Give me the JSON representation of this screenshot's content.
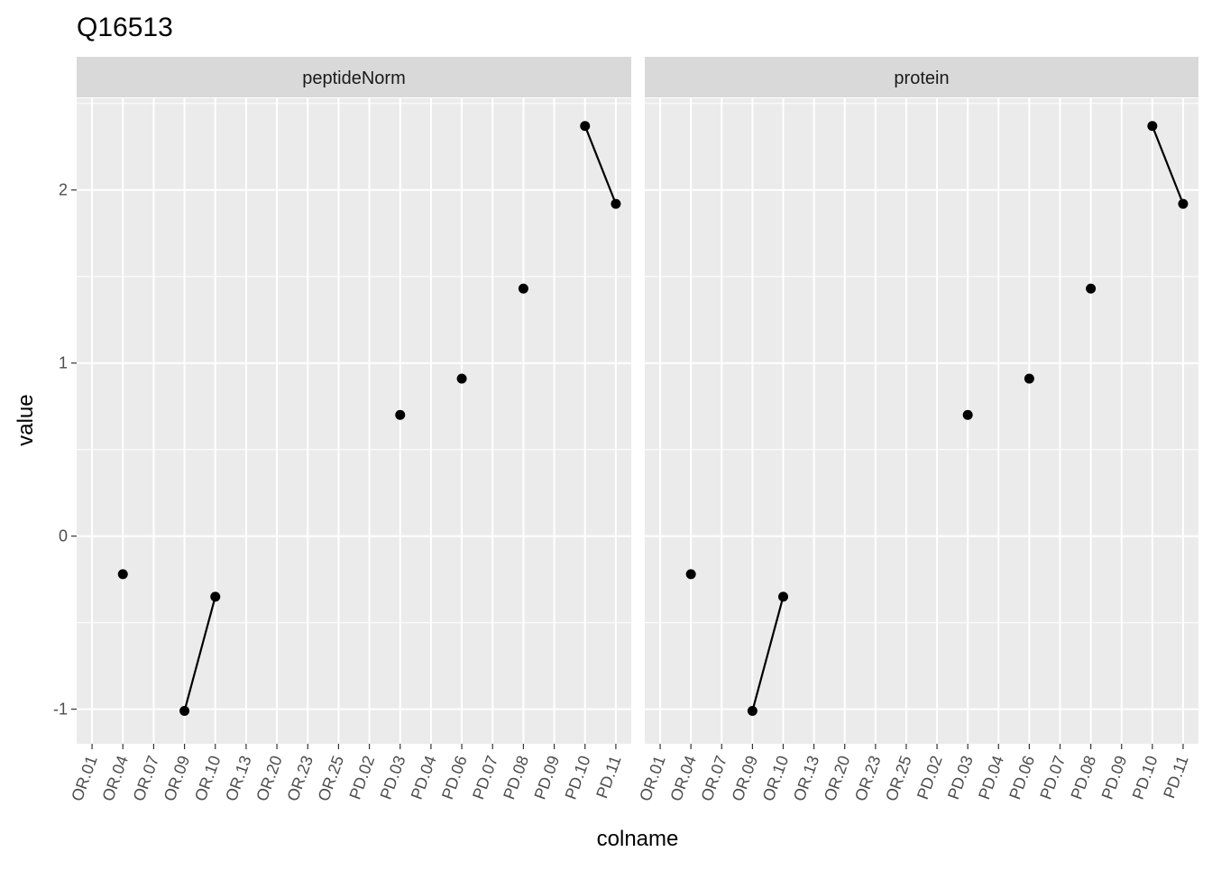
{
  "chart_data": {
    "type": "scatter",
    "title": "Q16513",
    "xlabel": "colname",
    "ylabel": "value",
    "ylim": [
      -1.2,
      2.53
    ],
    "yticks": [
      -1,
      0,
      1,
      2
    ],
    "ytick_labels": [
      "-1",
      "0",
      "1",
      "2"
    ],
    "grid": true,
    "categories": [
      "OR.01",
      "OR.04",
      "OR.07",
      "OR.09",
      "OR.10",
      "OR.13",
      "OR.20",
      "OR.23",
      "OR.25",
      "PD.02",
      "PD.03",
      "PD.04",
      "PD.06",
      "PD.07",
      "PD.08",
      "PD.09",
      "PD.10",
      "PD.11"
    ],
    "facets": [
      {
        "label": "peptideNorm",
        "points": [
          {
            "x": "OR.04",
            "y": -0.22
          },
          {
            "x": "OR.09",
            "y": -1.01
          },
          {
            "x": "OR.10",
            "y": -0.35
          },
          {
            "x": "PD.03",
            "y": 0.7
          },
          {
            "x": "PD.06",
            "y": 0.91
          },
          {
            "x": "PD.08",
            "y": 1.43
          },
          {
            "x": "PD.10",
            "y": 2.37
          },
          {
            "x": "PD.11",
            "y": 1.92
          }
        ],
        "segments": [
          [
            {
              "x": "OR.09",
              "y": -1.01
            },
            {
              "x": "OR.10",
              "y": -0.35
            }
          ],
          [
            {
              "x": "PD.10",
              "y": 2.37
            },
            {
              "x": "PD.11",
              "y": 1.92
            }
          ]
        ]
      },
      {
        "label": "protein",
        "points": [
          {
            "x": "OR.04",
            "y": -0.22
          },
          {
            "x": "OR.09",
            "y": -1.01
          },
          {
            "x": "OR.10",
            "y": -0.35
          },
          {
            "x": "PD.03",
            "y": 0.7
          },
          {
            "x": "PD.06",
            "y": 0.91
          },
          {
            "x": "PD.08",
            "y": 1.43
          },
          {
            "x": "PD.10",
            "y": 2.37
          },
          {
            "x": "PD.11",
            "y": 1.92
          }
        ],
        "segments": [
          [
            {
              "x": "OR.09",
              "y": -1.01
            },
            {
              "x": "OR.10",
              "y": -0.35
            }
          ],
          [
            {
              "x": "PD.10",
              "y": 2.37
            },
            {
              "x": "PD.11",
              "y": 1.92
            }
          ]
        ]
      }
    ],
    "colors": {
      "panel_bg": "#ebebeb",
      "strip_bg": "#d9d9d9",
      "grid": "#ffffff",
      "point": "#000000",
      "text": "#1a1a1a",
      "tick_text": "#4d4d4d"
    }
  }
}
